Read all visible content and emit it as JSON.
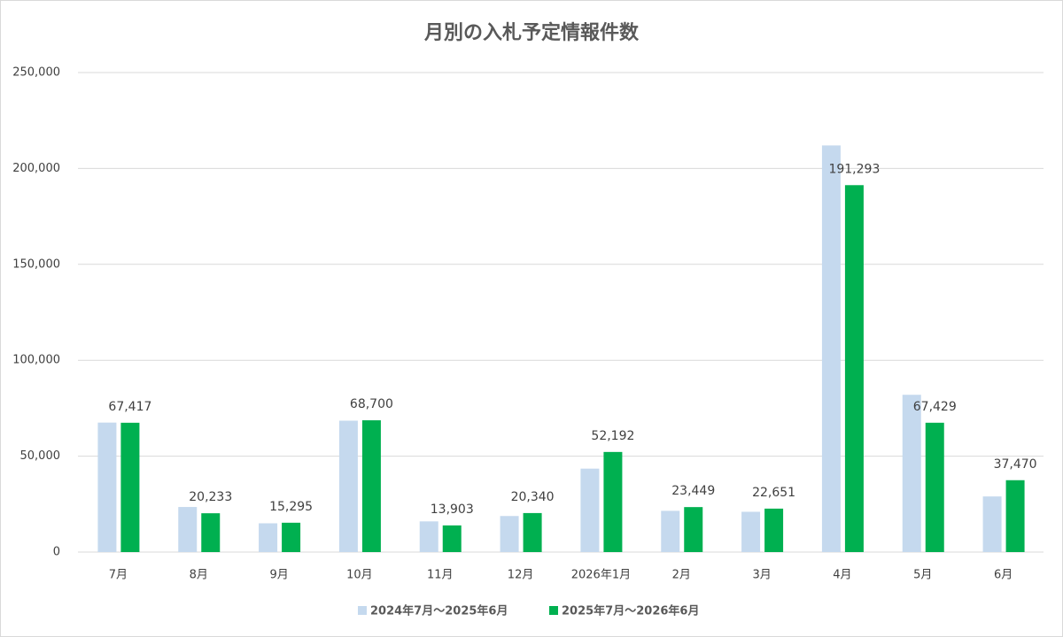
{
  "chart_data": {
    "type": "bar",
    "title": "月別の入札予定情報件数",
    "categories": [
      "7月",
      "8月",
      "9月",
      "10月",
      "11月",
      "12月",
      "2026年1月",
      "2月",
      "3月",
      "4月",
      "5月",
      "6月"
    ],
    "series": [
      {
        "name": "2024年7月～2025年6月",
        "color": "#c5d9ee",
        "values": [
          67500,
          23500,
          15000,
          68500,
          16000,
          18800,
          43500,
          21500,
          21000,
          212000,
          82000,
          29000
        ]
      },
      {
        "name": "2025年7月～2026年6月",
        "color": "#00b050",
        "values": [
          67417,
          20233,
          15295,
          68700,
          13903,
          20340,
          52192,
          23449,
          22651,
          191293,
          67429,
          37470
        ],
        "value_labels": [
          "67,417",
          "20,233",
          "15,295",
          "68,700",
          "13,903",
          "20,340",
          "52,192",
          "23,449",
          "22,651",
          "191,293",
          "67,429",
          "37,470"
        ]
      }
    ],
    "ylim": [
      0,
      250000
    ],
    "yticks": [
      0,
      {
        "value": 50000,
        "label": "50,000"
      },
      {
        "value": 100000,
        "label": "100,000"
      },
      {
        "value": 150000,
        "label": "150,000"
      },
      {
        "value": 200000,
        "label": "200,000"
      },
      {
        "value": 250000,
        "label": "250,000"
      }
    ],
    "grid": true
  }
}
